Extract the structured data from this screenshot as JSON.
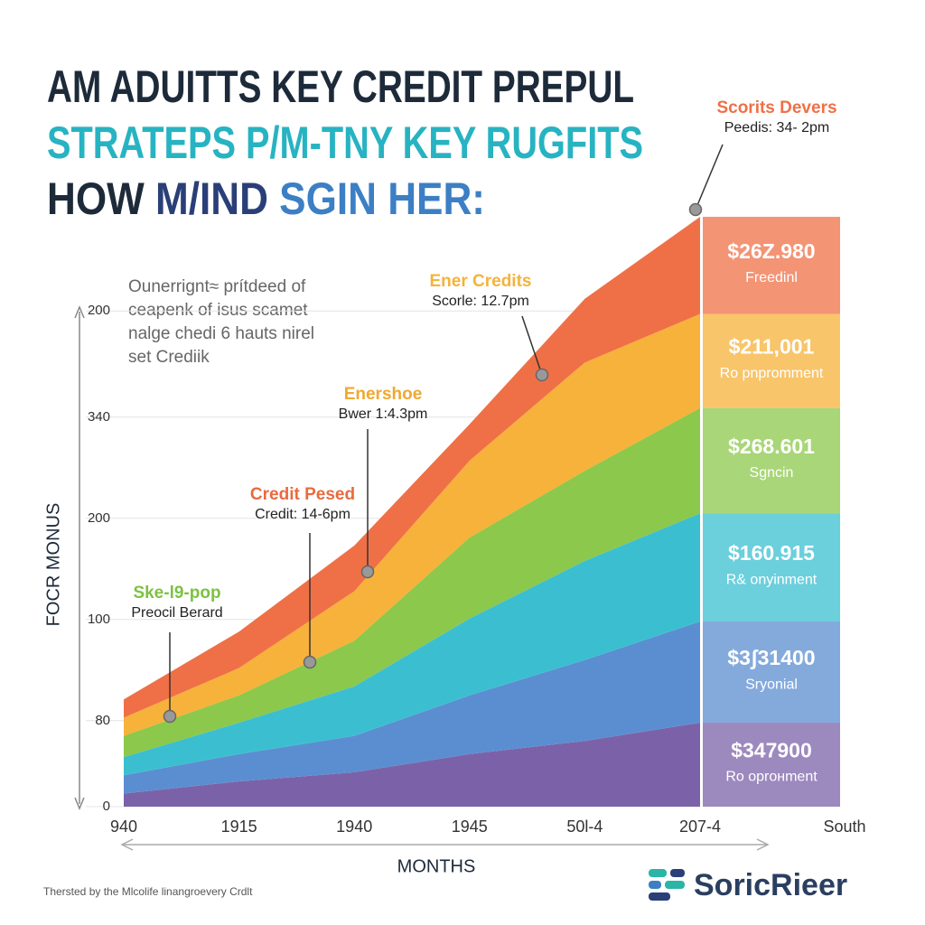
{
  "chart_data": {
    "type": "stacked_area",
    "title_lines": [
      [
        {
          "text": "AM ADUITTS KEY CREDIT PREPUL",
          "color": "#1d2a3a"
        }
      ],
      [
        {
          "text": "STRATEPS P/M-TNY KEY RUGFITS",
          "color": "#27b3c2"
        }
      ],
      [
        {
          "text": "HOW ",
          "color": "#1d2a3a"
        },
        {
          "text": "M/IND ",
          "color": "#2a3f78"
        },
        {
          "text": "SGIN HER:",
          "color": "#3c7fc4"
        }
      ]
    ],
    "note": [
      "Ounerrignt≈ prítdeed of",
      "ceapenk of isus scamet",
      "nalge chedi 6 hauts nirel",
      "set Crediik"
    ],
    "y_label": "FOCR MONUS",
    "x_label": "MONTHS",
    "x_end_label": "South",
    "categories": [
      "940",
      "1915",
      "1940",
      "1945",
      "50l-4",
      "207-4"
    ],
    "ylim": [
      0,
      600
    ],
    "yticks": [
      0,
      {
        "value": 85,
        "label": "80"
      },
      {
        "value": 185,
        "label": "100"
      },
      {
        "value": 285,
        "label": "200"
      },
      {
        "value": 385,
        "label": "340"
      },
      {
        "value": 490,
        "label": "200"
      }
    ],
    "series": [
      {
        "name": "Ro oprонment",
        "amount": "$347900",
        "color": "#7b62a8",
        "values": [
          13,
          25,
          34,
          52,
          65,
          83
        ]
      },
      {
        "name": "Sryonial",
        "amount": "$3ʃ31400",
        "color": "#5b8ed0",
        "values": [
          18,
          27,
          36,
          58,
          80,
          100
        ]
      },
      {
        "name": "R& onyinment",
        "amount": "$160.915",
        "color": "#3bbfd0",
        "values": [
          18,
          31,
          49,
          76,
          98,
          107
        ]
      },
      {
        "name": "Sgncin",
        "amount": "$268.601",
        "color": "#8cc84b",
        "values": [
          21,
          27,
          45,
          80,
          89,
          104
        ]
      },
      {
        "name": "Ro pnpromment",
        "amount": "$211,001",
        "color": "#f6b23a",
        "values": [
          18,
          27,
          49,
          76,
          107,
          93
        ]
      },
      {
        "name": "Freedinl",
        "amount": "$26Z.980",
        "color": "#ef7047",
        "values": [
          18,
          36,
          45,
          36,
          63,
          96
        ]
      }
    ],
    "annotations": [
      {
        "title": "Scorits Devers",
        "text": "Peedis: 34- 2pm",
        "color": "#ef7047"
      },
      {
        "title": "Ener Credits",
        "text": "Scorle: 12.7pm",
        "color": "#f6b23a"
      },
      {
        "title": "Enershoe",
        "text": "Bwer 1:4.3pm",
        "color": "#f0a830"
      },
      {
        "title": "Credit Pesed",
        "text": "Credit: 14-6pm",
        "color": "#ea6a3e"
      },
      {
        "title": "Ske-l9-pop",
        "text": "Preocil Berard",
        "color": "#7cc242"
      }
    ],
    "footer": "Thersted by the Mlcolife linangroevery Crdlt",
    "logo": "SoricRieer"
  }
}
